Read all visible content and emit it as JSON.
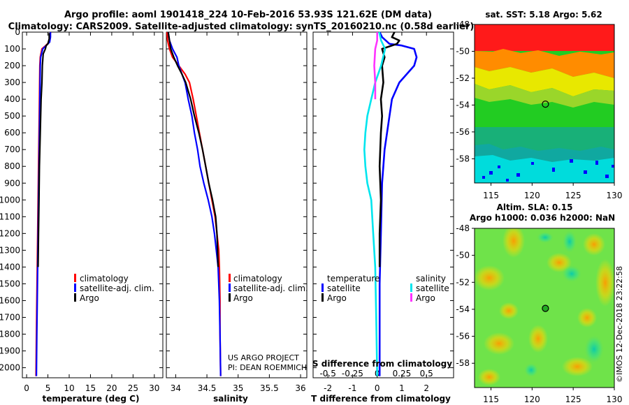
{
  "title": {
    "line1": "Argo profile: aoml 1901418_224 10-Feb-2016 53.93S 121.62E (DM data)",
    "line2": "Climatology: CARS2009. Satellite-adjusted climatology: synTS_20160210.nc (0.58d earlier)"
  },
  "credits": {
    "line1": "US ARGO PROJECT",
    "line2": "PI: DEAN ROEMMICH"
  },
  "watermark": "©IMOS 12-Dec-2018 23:22:58",
  "colors": {
    "climatology": "#ff0000",
    "satellite": "#0000ff",
    "argo": "#000000",
    "sat_salinity": "#00e5ee",
    "argo_salinity": "#ff33ff"
  },
  "chart_data": [
    {
      "type": "line",
      "xlabel": "temperature (deg C)",
      "xlim": [
        -1,
        32
      ],
      "xticks": [
        0,
        5,
        10,
        15,
        20,
        25,
        30
      ],
      "ylim": [
        2060,
        0
      ],
      "yticks": [
        0,
        100,
        200,
        300,
        400,
        500,
        600,
        700,
        800,
        900,
        1000,
        1100,
        1200,
        1300,
        1400,
        1500,
        1600,
        1700,
        1800,
        1900,
        2000
      ],
      "legend": [
        "climatology",
        "satellite-adj. clim.",
        "Argo"
      ],
      "series": [
        {
          "name": "climatology",
          "points": [
            [
              5.6,
              0
            ],
            [
              5.5,
              30
            ],
            [
              5.3,
              60
            ],
            [
              4.5,
              80
            ],
            [
              3.6,
              100
            ],
            [
              3.2,
              150
            ],
            [
              3.1,
              200
            ],
            [
              3.0,
              400
            ],
            [
              2.9,
              600
            ],
            [
              2.8,
              800
            ],
            [
              2.7,
              1000
            ],
            [
              2.6,
              1200
            ],
            [
              2.5,
              1400
            ],
            [
              2.4,
              1600
            ],
            [
              2.3,
              1800
            ],
            [
              2.2,
              2050
            ]
          ]
        },
        {
          "name": "satellite-adj. clim.",
          "points": [
            [
              5.6,
              0
            ],
            [
              5.6,
              30
            ],
            [
              5.4,
              60
            ],
            [
              4.6,
              80
            ],
            [
              3.8,
              100
            ],
            [
              3.3,
              150
            ],
            [
              3.2,
              200
            ],
            [
              3.1,
              400
            ],
            [
              3.0,
              600
            ],
            [
              2.9,
              800
            ],
            [
              2.8,
              1000
            ],
            [
              2.7,
              1200
            ],
            [
              2.6,
              1400
            ],
            [
              2.5,
              1600
            ],
            [
              2.4,
              1800
            ],
            [
              2.3,
              2050
            ]
          ]
        },
        {
          "name": "Argo",
          "points": [
            [
              5.3,
              5
            ],
            [
              5.3,
              40
            ],
            [
              5.0,
              70
            ],
            [
              4.6,
              80
            ],
            [
              4.4,
              100
            ],
            [
              3.9,
              130
            ],
            [
              3.7,
              200
            ],
            [
              3.6,
              300
            ],
            [
              3.4,
              400
            ],
            [
              3.2,
              600
            ],
            [
              3.0,
              800
            ],
            [
              2.9,
              1000
            ],
            [
              2.8,
              1200
            ],
            [
              2.7,
              1400
            ]
          ]
        }
      ]
    },
    {
      "type": "line",
      "xlabel": "salinity",
      "xlim": [
        33.85,
        36.1
      ],
      "xticks": [
        34,
        34.5,
        35,
        35.5,
        36
      ],
      "ylim": [
        2060,
        0
      ],
      "legend": [
        "climatology",
        "satellite-adj. clim.",
        "Argo"
      ],
      "series": [
        {
          "name": "climatology",
          "points": [
            [
              33.86,
              0
            ],
            [
              33.87,
              50
            ],
            [
              33.9,
              100
            ],
            [
              33.95,
              150
            ],
            [
              34.05,
              200
            ],
            [
              34.15,
              250
            ],
            [
              34.22,
              300
            ],
            [
              34.28,
              400
            ],
            [
              34.33,
              500
            ],
            [
              34.38,
              600
            ],
            [
              34.43,
              700
            ],
            [
              34.48,
              800
            ],
            [
              34.53,
              900
            ],
            [
              34.58,
              1000
            ],
            [
              34.63,
              1100
            ],
            [
              34.66,
              1200
            ],
            [
              34.69,
              1300
            ],
            [
              34.7,
              1400
            ],
            [
              34.71,
              1600
            ],
            [
              34.71,
              1800
            ],
            [
              34.72,
              2050
            ]
          ]
        },
        {
          "name": "satellite-adj. clim.",
          "points": [
            [
              33.88,
              0
            ],
            [
              33.9,
              50
            ],
            [
              33.95,
              100
            ],
            [
              34.02,
              150
            ],
            [
              34.05,
              200
            ],
            [
              34.1,
              250
            ],
            [
              34.15,
              300
            ],
            [
              34.2,
              400
            ],
            [
              34.26,
              500
            ],
            [
              34.3,
              600
            ],
            [
              34.35,
              700
            ],
            [
              34.39,
              800
            ],
            [
              34.45,
              900
            ],
            [
              34.52,
              1000
            ],
            [
              34.58,
              1100
            ],
            [
              34.62,
              1200
            ],
            [
              34.65,
              1300
            ],
            [
              34.68,
              1400
            ],
            [
              34.7,
              1600
            ],
            [
              34.71,
              1800
            ],
            [
              34.72,
              2050
            ]
          ]
        },
        {
          "name": "Argo",
          "points": [
            [
              33.88,
              0
            ],
            [
              33.9,
              50
            ],
            [
              33.92,
              100
            ],
            [
              33.97,
              150
            ],
            [
              34.03,
              200
            ],
            [
              34.1,
              250
            ],
            [
              34.16,
              300
            ],
            [
              34.24,
              400
            ],
            [
              34.3,
              500
            ],
            [
              34.37,
              600
            ],
            [
              34.43,
              700
            ],
            [
              34.48,
              800
            ],
            [
              34.53,
              900
            ],
            [
              34.59,
              1000
            ],
            [
              34.64,
              1100
            ],
            [
              34.66,
              1200
            ],
            [
              34.67,
              1300
            ],
            [
              34.68,
              1400
            ]
          ]
        }
      ]
    },
    {
      "type": "line",
      "xlabel": "T difference from climatology",
      "xlabel_top": "S difference from climatology",
      "xlim": [
        -2.6,
        3.1
      ],
      "xticks": [
        -2,
        -1,
        0,
        1,
        2
      ],
      "xticks_top": [
        -0.5,
        -0.25,
        0,
        0.25,
        0.5
      ],
      "xtick_labels_top": [
        "-0.5",
        "-0.25",
        "0",
        "0.25",
        "0.5"
      ],
      "legend_temperature_title": "temperature",
      "legend_salinity_title": "salinity",
      "legend_temperature": [
        "satellite",
        "Argo"
      ],
      "legend_salinity": [
        "satellite",
        "Argo"
      ],
      "series": [
        {
          "name": "satellite",
          "group": "temperature",
          "points": [
            [
              0.1,
              0
            ],
            [
              0.2,
              30
            ],
            [
              0.5,
              70
            ],
            [
              1.0,
              80
            ],
            [
              1.5,
              100
            ],
            [
              1.6,
              150
            ],
            [
              1.5,
              200
            ],
            [
              1.2,
              250
            ],
            [
              0.9,
              300
            ],
            [
              0.6,
              400
            ],
            [
              0.5,
              500
            ],
            [
              0.4,
              600
            ],
            [
              0.3,
              700
            ],
            [
              0.2,
              900
            ],
            [
              0.15,
              1200
            ],
            [
              0.1,
              1500
            ],
            [
              0.1,
              1800
            ],
            [
              0.1,
              2050
            ]
          ]
        },
        {
          "name": "Argo",
          "group": "temperature",
          "points": [
            [
              0.7,
              0
            ],
            [
              0.6,
              30
            ],
            [
              0.9,
              50
            ],
            [
              0.8,
              70
            ],
            [
              0.2,
              100
            ],
            [
              0.3,
              150
            ],
            [
              0.2,
              200
            ],
            [
              0.25,
              300
            ],
            [
              0.15,
              400
            ],
            [
              0.2,
              500
            ],
            [
              0.15,
              600
            ],
            [
              0.1,
              800
            ],
            [
              0.15,
              1000
            ],
            [
              0.1,
              1200
            ],
            [
              0.1,
              1400
            ]
          ]
        },
        {
          "name": "satellite",
          "group": "salinity",
          "points": [
            [
              0.02,
              0
            ],
            [
              0.04,
              50
            ],
            [
              0.08,
              100
            ],
            [
              0.04,
              200
            ],
            [
              -0.02,
              300
            ],
            [
              -0.06,
              400
            ],
            [
              -0.1,
              500
            ],
            [
              -0.12,
              600
            ],
            [
              -0.13,
              700
            ],
            [
              -0.12,
              800
            ],
            [
              -0.1,
              900
            ],
            [
              -0.06,
              1000
            ],
            [
              -0.04,
              1200
            ],
            [
              -0.02,
              1400
            ],
            [
              -0.01,
              1700
            ],
            [
              0.0,
              2050
            ]
          ]
        },
        {
          "name": "Argo",
          "group": "salinity",
          "points": [
            [
              0.0,
              0
            ],
            [
              0.0,
              50
            ],
            [
              -0.02,
              100
            ],
            [
              -0.03,
              200
            ],
            [
              -0.02,
              300
            ],
            [
              -0.02,
              400
            ]
          ]
        }
      ]
    },
    {
      "type": "heatmap",
      "title": "sat. SST: 5.18 Argo: 5.62",
      "xticks": [
        115,
        120,
        125,
        130
      ],
      "yticks": [
        -48,
        -50,
        -52,
        -54,
        -56,
        -58
      ],
      "xlim": [
        113,
        130
      ],
      "ylim": [
        -59.8,
        -48
      ],
      "marker": {
        "lon": 121.62,
        "lat": -53.93
      }
    },
    {
      "type": "heatmap",
      "title_line1": "Altim. SLA: 0.15",
      "title_line2": "Argo h1000: 0.036 h2000: NaN",
      "xticks": [
        115,
        120,
        125,
        130
      ],
      "yticks": [
        -48,
        -50,
        -52,
        -54,
        -56,
        -58
      ],
      "xlim": [
        113,
        130
      ],
      "ylim": [
        -59.8,
        -48
      ],
      "marker": {
        "lon": 121.62,
        "lat": -53.93
      }
    }
  ]
}
